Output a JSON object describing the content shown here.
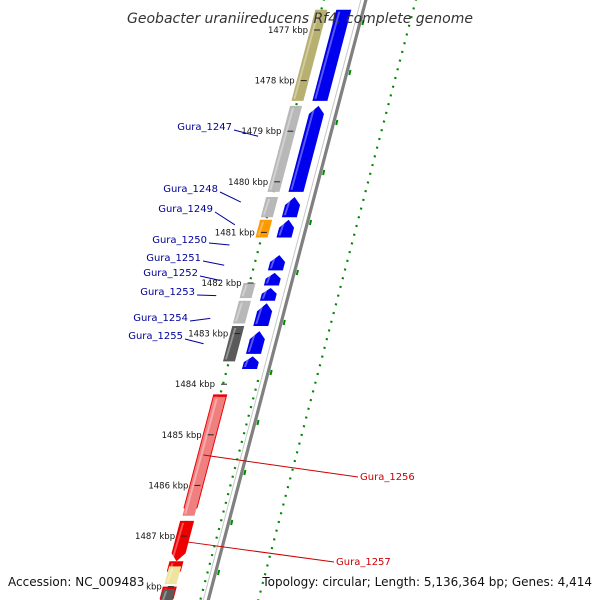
{
  "title": "Geobacter uraniireducens Rf4, complete genome",
  "footer": {
    "accession": "Accession: NC_009483",
    "summary": "Topology: circular; Length: 5,136,364 bp; Genes: 4,414"
  },
  "scale": {
    "unit_label_suffix": "kbp",
    "ticks": [
      {
        "kbp": 1477,
        "label": "1477 kbp"
      },
      {
        "kbp": 1478,
        "label": "1478 kbp"
      },
      {
        "kbp": 1479,
        "label": "1479 kbp"
      },
      {
        "kbp": 1480,
        "label": "1480 kbp"
      },
      {
        "kbp": 1481,
        "label": "1481 kbp"
      },
      {
        "kbp": 1482,
        "label": "1482 kbp"
      },
      {
        "kbp": 1483,
        "label": "1483 kbp"
      },
      {
        "kbp": 1484,
        "label": "1484 kbp"
      },
      {
        "kbp": 1485,
        "label": "1485 kbp"
      },
      {
        "kbp": 1486,
        "label": "1486 kbp"
      },
      {
        "kbp": 1487,
        "label": "1487 kbp"
      },
      {
        "kbp": 1488,
        "label": "kbp"
      }
    ]
  },
  "colors": {
    "cds": "#0000ee",
    "cds_rev": "#ee0000",
    "gene_gray": "#b8b8b8",
    "gene_dark": "#5a5a5a",
    "gene_khaki": "#b8b070",
    "gene_orange": "#ff9900",
    "gene_pink": "#f08080",
    "gene_pale": "#eee4a0",
    "backbone": "#808080",
    "dots": "#008800",
    "label_fwd": "#000099",
    "label_rev": "#cc0000"
  },
  "features": [
    {
      "start": 1476.6,
      "end": 1478.4,
      "track": "outer",
      "color": "gene_khaki",
      "arrow": false
    },
    {
      "start": 1476.6,
      "end": 1478.4,
      "track": "inner",
      "color": "cds",
      "arrow": false
    },
    {
      "start": 1478.5,
      "end": 1480.2,
      "track": "outer",
      "color": "gene_gray",
      "arrow": false
    },
    {
      "start": 1478.5,
      "end": 1480.2,
      "track": "inner",
      "color": "cds",
      "arrow": true
    },
    {
      "start": 1480.3,
      "end": 1480.7,
      "track": "outer",
      "color": "gene_gray",
      "arrow": false
    },
    {
      "start": 1480.3,
      "end": 1480.7,
      "track": "inner",
      "color": "cds",
      "arrow": true
    },
    {
      "start": 1480.75,
      "end": 1481.1,
      "track": "outer",
      "color": "gene_orange",
      "arrow": false
    },
    {
      "start": 1480.75,
      "end": 1481.1,
      "track": "inner",
      "color": "cds",
      "arrow": true
    },
    {
      "start": 1481.45,
      "end": 1481.75,
      "track": "inner",
      "color": "cds",
      "arrow": true
    },
    {
      "start": 1481.8,
      "end": 1482.05,
      "track": "inner",
      "color": "cds",
      "arrow": true
    },
    {
      "start": 1482.0,
      "end": 1482.3,
      "track": "outer",
      "color": "gene_gray",
      "arrow": false
    },
    {
      "start": 1482.1,
      "end": 1482.35,
      "track": "inner",
      "color": "cds",
      "arrow": true
    },
    {
      "start": 1482.35,
      "end": 1482.8,
      "track": "outer",
      "color": "gene_gray",
      "arrow": false
    },
    {
      "start": 1482.4,
      "end": 1482.85,
      "track": "inner",
      "color": "cds",
      "arrow": true
    },
    {
      "start": 1482.85,
      "end": 1483.55,
      "track": "outer",
      "color": "gene_dark",
      "arrow": false
    },
    {
      "start": 1482.95,
      "end": 1483.4,
      "track": "inner",
      "color": "cds",
      "arrow": true
    },
    {
      "start": 1483.45,
      "end": 1483.7,
      "track": "inner",
      "color": "cds",
      "arrow": true
    },
    {
      "start": 1484.2,
      "end": 1486.6,
      "track": "inner",
      "color": "cds_rev",
      "arrow": true,
      "rev": true
    },
    {
      "start": 1484.25,
      "end": 1486.6,
      "track": "outer",
      "color": "gene_pink",
      "arrow": false
    },
    {
      "start": 1486.7,
      "end": 1487.5,
      "track": "inner",
      "color": "cds_rev",
      "arrow": true,
      "rev": true
    },
    {
      "start": 1487.5,
      "end": 1487.85,
      "track": "inner",
      "color": "cds_rev",
      "arrow": true,
      "rev": true
    },
    {
      "start": 1487.6,
      "end": 1487.95,
      "track": "outer",
      "color": "gene_pale",
      "arrow": false
    },
    {
      "start": 1488.0,
      "end": 1488.4,
      "track": "inner",
      "color": "cds_rev",
      "arrow": true,
      "rev": true
    },
    {
      "start": 1488.05,
      "end": 1488.4,
      "track": "outer",
      "color": "gene_dark",
      "arrow": false
    }
  ],
  "gene_labels": [
    {
      "text": "Gura_1247",
      "target": 1479.1,
      "side": "left",
      "strand": "fwd"
    },
    {
      "text": "Gura_1248",
      "target": 1480.4,
      "side": "left",
      "strand": "fwd"
    },
    {
      "text": "Gura_1249",
      "target": 1480.85,
      "side": "left",
      "strand": "fwd"
    },
    {
      "text": "Gura_1250",
      "target": 1481.25,
      "side": "left",
      "strand": "fwd"
    },
    {
      "text": "Gura_1251",
      "target": 1481.65,
      "side": "left",
      "strand": "fwd"
    },
    {
      "text": "Gura_1252",
      "target": 1481.95,
      "side": "left",
      "strand": "fwd"
    },
    {
      "text": "Gura_1253",
      "target": 1482.25,
      "side": "left",
      "strand": "fwd"
    },
    {
      "text": "Gura_1254",
      "target": 1482.7,
      "side": "left",
      "strand": "fwd"
    },
    {
      "text": "Gura_1255",
      "target": 1483.2,
      "side": "left",
      "strand": "fwd"
    },
    {
      "text": "Gura_1256",
      "target": 1485.4,
      "side": "right",
      "strand": "rev"
    },
    {
      "text": "Gura_1257",
      "target": 1487.1,
      "side": "right",
      "strand": "rev"
    }
  ]
}
